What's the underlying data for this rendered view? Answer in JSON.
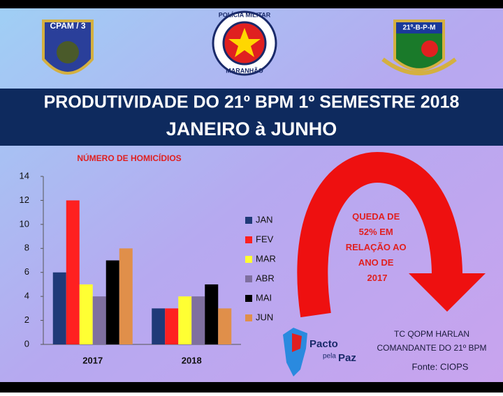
{
  "logos": {
    "left": "CPAM / 3",
    "center_top": "POLÍCIA MILITAR",
    "center_bottom": "MARANHÃO",
    "right": "21º-B-P-M"
  },
  "header": {
    "title": "PRODUTIVIDADE DO 21º BPM 1º SEMESTRE 2018",
    "subtitle": "JANEIRO à JUNHO"
  },
  "chart_data": {
    "type": "bar",
    "title": "NÚMERO DE HOMICÍDIOS",
    "categories": [
      "2017",
      "2018"
    ],
    "series": [
      {
        "name": "JAN",
        "color": "#1f3a78",
        "values": [
          6,
          3
        ]
      },
      {
        "name": "FEV",
        "color": "#ff2020",
        "values": [
          12,
          3
        ]
      },
      {
        "name": "MAR",
        "color": "#ffff33",
        "values": [
          5,
          4
        ]
      },
      {
        "name": "ABR",
        "color": "#7f6f9f",
        "values": [
          4,
          4
        ]
      },
      {
        "name": "MAI",
        "color": "#000000",
        "values": [
          7,
          5
        ]
      },
      {
        "name": "JUN",
        "color": "#e08f4a",
        "values": [
          8,
          3
        ]
      }
    ],
    "ylim": [
      0,
      14
    ],
    "yticks": [
      0,
      2,
      4,
      6,
      8,
      10,
      12,
      14
    ],
    "grid": false,
    "legend": "right"
  },
  "annotation": {
    "lines": [
      "QUEDA DE",
      "52% EM",
      "RELAÇÃO AO",
      "ANO DE",
      "2017"
    ]
  },
  "logo_pacto": {
    "word1": "Pacto",
    "word2": "pela",
    "word3": "Paz"
  },
  "footer": {
    "line1": "TC QOPM HARLAN",
    "line2": "COMANDANTE DO 21º BPM",
    "source": "Fonte: CIOPS"
  }
}
